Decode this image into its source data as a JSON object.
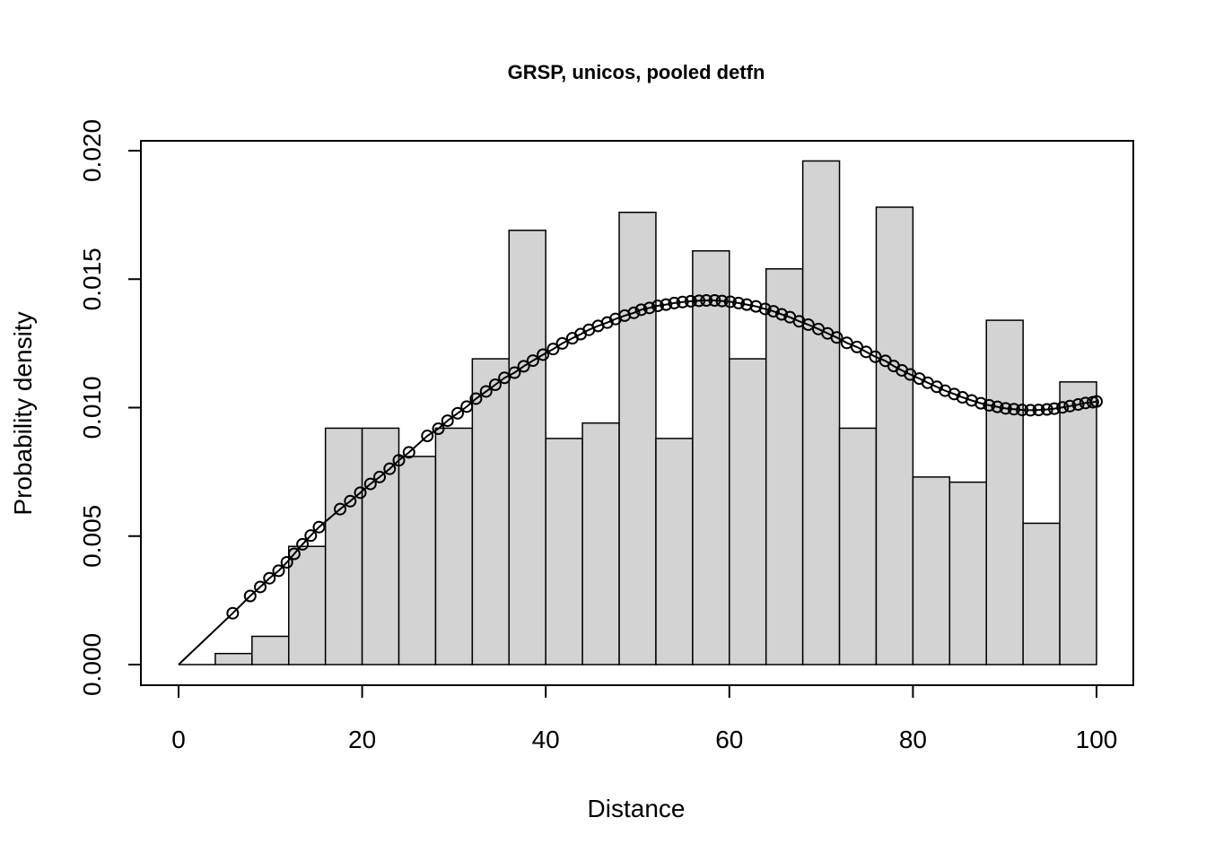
{
  "chart_data": {
    "type": "bar",
    "title": "GRSP, unicos, pooled detfn",
    "xlabel": "Distance",
    "ylabel": "Probability density",
    "xlim": [
      0,
      100
    ],
    "ylim": [
      0,
      0.02
    ],
    "xticks": [
      0,
      20,
      40,
      60,
      80,
      100
    ],
    "xtick_labels": [
      "0",
      "20",
      "40",
      "60",
      "80",
      "100"
    ],
    "yticks": [
      0,
      0.005,
      0.01,
      0.015,
      0.02
    ],
    "ytick_labels": [
      "0.000",
      "0.005",
      "0.010",
      "0.015",
      "0.020"
    ],
    "bin_edges": [
      0,
      4,
      8,
      12,
      16,
      20,
      24,
      28,
      32,
      36,
      40,
      44,
      48,
      52,
      56,
      60,
      64,
      68,
      72,
      76,
      80,
      84,
      88,
      92,
      96,
      100
    ],
    "histogram_density": [
      0.0,
      0.00043,
      0.0011,
      0.0046,
      0.0092,
      0.0092,
      0.0081,
      0.0092,
      0.0119,
      0.0169,
      0.0088,
      0.0094,
      0.0176,
      0.0088,
      0.0161,
      0.0119,
      0.0154,
      0.0196,
      0.0092,
      0.0178,
      0.0073,
      0.0071,
      0.0134,
      0.0055,
      0.011
    ],
    "fitted_curve": {
      "type": "line",
      "x": [
        0,
        5.9,
        7.8,
        8.9,
        9.9,
        10.9,
        11.8,
        12.6,
        13.5,
        14.4,
        15.3,
        17.6,
        18.7,
        19.8,
        20.9,
        21.9,
        23.0,
        24.0,
        25.1,
        27.1,
        28.3,
        29.3,
        30.4,
        31.4,
        32.4,
        33.5,
        34.5,
        35.5,
        36.6,
        37.6,
        38.6,
        39.7,
        40.8,
        41.8,
        42.9,
        43.8,
        44.7,
        45.7,
        46.7,
        47.6,
        48.6,
        49.6,
        50.4,
        51.3,
        52.2,
        53.1,
        54.0,
        54.9,
        55.8,
        56.7,
        57.5,
        58.4,
        59.2,
        60.1,
        61.0,
        61.9,
        62.9,
        63.9,
        64.8,
        65.7,
        66.6,
        67.6,
        68.6,
        69.7,
        70.7,
        71.7,
        72.8,
        73.9,
        74.9,
        75.9,
        77.0,
        77.9,
        78.8,
        79.7,
        80.7,
        81.6,
        82.6,
        83.5,
        84.5,
        85.4,
        86.4,
        87.4,
        88.3,
        89.2,
        90.1,
        91.0,
        91.9,
        92.8,
        93.7,
        94.6,
        95.4,
        96.3,
        97.1,
        98.0,
        98.8,
        99.6,
        100
      ],
      "y": [
        0,
        0.002,
        0.00267,
        0.00302,
        0.00336,
        0.00365,
        0.00398,
        0.00431,
        0.00468,
        0.00502,
        0.00535,
        0.00605,
        0.00636,
        0.00669,
        0.00703,
        0.0073,
        0.00762,
        0.00795,
        0.00826,
        0.0089,
        0.00918,
        0.00949,
        0.00978,
        0.01004,
        0.01035,
        0.01063,
        0.01089,
        0.01116,
        0.01136,
        0.01161,
        0.01183,
        0.01206,
        0.01228,
        0.0125,
        0.0127,
        0.01286,
        0.01303,
        0.01318,
        0.01331,
        0.01345,
        0.01358,
        0.01369,
        0.01381,
        0.01388,
        0.01396,
        0.01401,
        0.01407,
        0.01411,
        0.01414,
        0.01416,
        0.01417,
        0.01417,
        0.01415,
        0.01412,
        0.01407,
        0.01401,
        0.01394,
        0.01384,
        0.01375,
        0.01363,
        0.01352,
        0.01336,
        0.01323,
        0.01306,
        0.01289,
        0.01273,
        0.01252,
        0.01236,
        0.01217,
        0.01198,
        0.01182,
        0.01162,
        0.01145,
        0.01129,
        0.01113,
        0.01097,
        0.01081,
        0.01066,
        0.01053,
        0.0104,
        0.01028,
        0.01017,
        0.01009,
        0.01003,
        0.00997,
        0.00994,
        0.00991,
        0.0099,
        0.00991,
        0.00993,
        0.00996,
        0.01001,
        0.01006,
        0.01012,
        0.01018,
        0.01021,
        0.01024
      ]
    },
    "colors": {
      "bar_fill": "#d3d3d3",
      "bar_stroke": "#000000",
      "curve": "#000000"
    },
    "grid": false
  }
}
